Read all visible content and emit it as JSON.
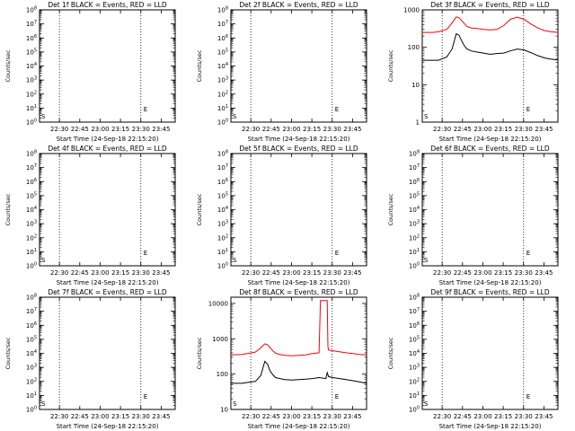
{
  "figure": {
    "x_tick_labels": [
      "22:30",
      "22:45",
      "23:00",
      "23:15",
      "23:30",
      "23:45"
    ],
    "colors": {
      "events": "#000000",
      "lld": "#ff0000",
      "background": "#ffffff"
    }
  },
  "chart_data": [
    {
      "type": "line",
      "id": "1f",
      "title": "Det 1f BLACK = Events, RED = LLD",
      "xlabel": "Start Time (24-Sep-18 22:15:20)",
      "ylabel": "Counts/sec",
      "ylim": [
        1,
        100000000
      ],
      "yscale": "log",
      "y_tick_labels": [
        "10^0",
        "10^1",
        "10^2",
        "10^3",
        "10^4",
        "10^5",
        "10^6",
        "10^7",
        "10^8"
      ],
      "x_range_minutes": [
        0,
        100
      ],
      "grid": "vertical dotted lines at 22:30 and 23:30",
      "markers": [
        "S",
        "E"
      ],
      "series": []
    },
    {
      "type": "line",
      "id": "2f",
      "title": "Det 2f BLACK = Events, RED = LLD",
      "xlabel": "Start Time (24-Sep-18 22:15:20)",
      "ylabel": "Counts/sec",
      "ylim": [
        1,
        100000000
      ],
      "yscale": "log",
      "y_tick_labels": [
        "10^0",
        "10^1",
        "10^2",
        "10^3",
        "10^4",
        "10^5",
        "10^6",
        "10^7",
        "10^8"
      ],
      "x_range_minutes": [
        0,
        100
      ],
      "grid": "vertical dotted lines at 22:30 and 23:30",
      "markers": [
        "S",
        "E"
      ],
      "series": []
    },
    {
      "type": "line",
      "id": "3f",
      "title": "Det 3f BLACK = Events, RED = LLD",
      "xlabel": "Start Time (24-Sep-18 22:15:20)",
      "ylabel": "Counts/sec",
      "ylim": [
        1,
        1000
      ],
      "yscale": "log",
      "y_tick_labels": [
        "1",
        "10",
        "100",
        "1000"
      ],
      "x_range_minutes": [
        0,
        100
      ],
      "grid": "vertical dotted lines at 22:30 and 23:30",
      "markers": [
        "S",
        "E"
      ],
      "series": [
        {
          "color": "lld",
          "x": [
            0,
            8,
            12,
            18,
            22,
            25,
            27,
            29,
            31,
            33,
            36,
            40,
            45,
            50,
            55,
            60,
            65,
            70,
            75,
            80,
            85,
            90,
            95,
            100
          ],
          "y": [
            250,
            250,
            260,
            300,
            450,
            650,
            620,
            520,
            430,
            360,
            330,
            320,
            300,
            290,
            300,
            380,
            560,
            640,
            560,
            420,
            330,
            280,
            260,
            250
          ]
        },
        {
          "color": "events",
          "x": [
            0,
            8,
            12,
            18,
            22,
            25,
            27,
            29,
            31,
            33,
            36,
            40,
            45,
            50,
            55,
            60,
            65,
            70,
            75,
            80,
            85,
            90,
            95,
            100
          ],
          "y": [
            45,
            45,
            45,
            55,
            90,
            230,
            210,
            150,
            110,
            90,
            80,
            75,
            70,
            65,
            68,
            70,
            80,
            90,
            85,
            72,
            60,
            52,
            48,
            46
          ]
        }
      ]
    },
    {
      "type": "line",
      "id": "4f",
      "title": "Det 4f BLACK = Events, RED = LLD",
      "xlabel": "Start Time (24-Sep-18 22:15:20)",
      "ylabel": "Counts/sec",
      "ylim": [
        1,
        100000000
      ],
      "yscale": "log",
      "y_tick_labels": [
        "10^0",
        "10^1",
        "10^2",
        "10^3",
        "10^4",
        "10^5",
        "10^6",
        "10^7",
        "10^8"
      ],
      "x_range_minutes": [
        0,
        100
      ],
      "grid": "vertical dotted lines at 22:30 and 23:30",
      "markers": [
        "S",
        "E"
      ],
      "series": []
    },
    {
      "type": "line",
      "id": "5f",
      "title": "Det 5f BLACK = Events, RED = LLD",
      "xlabel": "Start Time (24-Sep-18 22:15:20)",
      "ylabel": "Counts/sec",
      "ylim": [
        1,
        100000000
      ],
      "yscale": "log",
      "y_tick_labels": [
        "10^0",
        "10^1",
        "10^2",
        "10^3",
        "10^4",
        "10^5",
        "10^6",
        "10^7",
        "10^8"
      ],
      "x_range_minutes": [
        0,
        100
      ],
      "grid": "vertical dotted lines at 22:30 and 23:30",
      "markers": [
        "S",
        "E"
      ],
      "series": []
    },
    {
      "type": "line",
      "id": "6f",
      "title": "Det 6f BLACK = Events, RED = LLD",
      "xlabel": "Start Time (24-Sep-18 22:15:20)",
      "ylabel": "Counts/sec",
      "ylim": [
        1,
        100000000
      ],
      "yscale": "log",
      "y_tick_labels": [
        "10^0",
        "10^1",
        "10^2",
        "10^3",
        "10^4",
        "10^5",
        "10^6",
        "10^7",
        "10^8"
      ],
      "x_range_minutes": [
        0,
        100
      ],
      "grid": "vertical dotted lines at 22:30 and 23:30",
      "markers": [
        "S",
        "E"
      ],
      "series": []
    },
    {
      "type": "line",
      "id": "7f",
      "title": "Det 7f BLACK = Events, RED = LLD",
      "xlabel": "Start Time (24-Sep-18 22:15:20)",
      "ylabel": "Counts/sec",
      "ylim": [
        1,
        100000000
      ],
      "yscale": "log",
      "y_tick_labels": [
        "10^0",
        "10^1",
        "10^2",
        "10^3",
        "10^4",
        "10^5",
        "10^6",
        "10^7",
        "10^8"
      ],
      "x_range_minutes": [
        0,
        100
      ],
      "grid": "vertical dotted lines at 22:30 and 23:30",
      "markers": [
        "S",
        "E"
      ],
      "series": []
    },
    {
      "type": "line",
      "id": "8f",
      "title": "Det 8f BLACK = Events, RED = LLD",
      "xlabel": "Start Time (24-Sep-18 22:15:20)",
      "ylabel": "Counts/sec",
      "ylim": [
        10,
        15000
      ],
      "yscale": "log",
      "y_tick_labels": [
        "10",
        "100",
        "1000",
        "10000"
      ],
      "x_range_minutes": [
        0,
        100
      ],
      "grid": "vertical dotted lines at 22:30 and 23:30",
      "markers": [
        "S",
        "E"
      ],
      "series": [
        {
          "color": "lld",
          "x": [
            0,
            8,
            12,
            18,
            22,
            25,
            27,
            29,
            31,
            33,
            36,
            40,
            45,
            50,
            55,
            60,
            65,
            66,
            66.5,
            71,
            71.5,
            72,
            75,
            80,
            85,
            90,
            95,
            100
          ],
          "y": [
            350,
            360,
            380,
            420,
            550,
            720,
            680,
            550,
            450,
            390,
            360,
            340,
            330,
            340,
            350,
            380,
            400,
            12000,
            12000,
            12000,
            600,
            480,
            460,
            430,
            400,
            380,
            360,
            350
          ]
        },
        {
          "color": "events",
          "x": [
            0,
            8,
            12,
            18,
            22,
            25,
            27,
            29,
            31,
            33,
            36,
            40,
            45,
            50,
            55,
            60,
            65,
            70,
            71,
            72,
            75,
            80,
            85,
            90,
            95,
            100
          ],
          "y": [
            55,
            55,
            58,
            62,
            90,
            230,
            190,
            120,
            95,
            80,
            75,
            70,
            68,
            70,
            72,
            75,
            80,
            75,
            110,
            85,
            80,
            75,
            70,
            65,
            60,
            55
          ]
        }
      ]
    },
    {
      "type": "line",
      "id": "9f",
      "title": "Det 9f BLACK = Events, RED = LLD",
      "xlabel": "Start Time (24-Sep-18 22:15:20)",
      "ylabel": "Counts/sec",
      "ylim": [
        1,
        100000000
      ],
      "yscale": "log",
      "y_tick_labels": [
        "10^0",
        "10^1",
        "10^2",
        "10^3",
        "10^4",
        "10^5",
        "10^6",
        "10^7",
        "10^8"
      ],
      "x_range_minutes": [
        0,
        100
      ],
      "grid": "vertical dotted lines at 22:30 and 23:30",
      "markers": [
        "S",
        "E"
      ],
      "series": []
    }
  ]
}
